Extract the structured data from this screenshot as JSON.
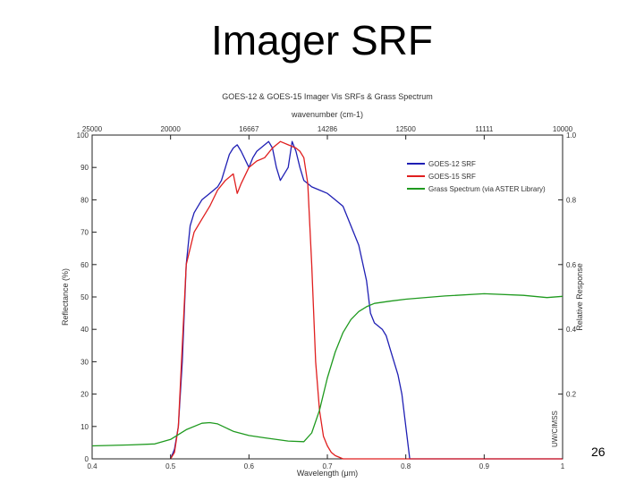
{
  "slide": {
    "title": "Imager SRF",
    "page_number": "26"
  },
  "chart_data": {
    "type": "line",
    "title": "GOES-12 & GOES-15 Imager Vis SRFs & Grass Spectrum",
    "top_axis_label": "wavenumber (cm-1)",
    "top_axis_ticks": [
      "25000",
      "20000",
      "16667",
      "14286",
      "12500",
      "11111",
      "10000"
    ],
    "xlabel": "Wavelength (μm)",
    "ylabel": "Reflectance (%)",
    "y2label": "Relative Response",
    "xlim": [
      0.4,
      1.0
    ],
    "ylim": [
      0,
      100
    ],
    "y2lim": [
      0,
      1
    ],
    "x_ticks": [
      "0.4",
      "0.5",
      "0.6",
      "0.7",
      "0.8",
      "0.9",
      "1"
    ],
    "y_ticks": [
      "0",
      "10",
      "20",
      "30",
      "40",
      "50",
      "60",
      "70",
      "80",
      "90",
      "100"
    ],
    "y2_ticks": [
      "0.2",
      "0.4",
      "0.6",
      "0.8",
      "1.0"
    ],
    "watermark": "UW/CIMSS",
    "legend_position": "top-right",
    "grid": false,
    "series": [
      {
        "name": "GOES-12 SRF",
        "color": "#1f1fb4",
        "axis": "right",
        "x": [
          0.5,
          0.505,
          0.51,
          0.515,
          0.52,
          0.525,
          0.53,
          0.535,
          0.54,
          0.55,
          0.56,
          0.565,
          0.57,
          0.575,
          0.58,
          0.585,
          0.59,
          0.6,
          0.605,
          0.61,
          0.615,
          0.62,
          0.625,
          0.63,
          0.635,
          0.64,
          0.65,
          0.655,
          0.66,
          0.665,
          0.67,
          0.675,
          0.68,
          0.69,
          0.7,
          0.71,
          0.72,
          0.73,
          0.74,
          0.75,
          0.755,
          0.76,
          0.765,
          0.77,
          0.775,
          0.78,
          0.785,
          0.79,
          0.795,
          0.8,
          0.805,
          1.0
        ],
        "y": [
          0.0,
          0.03,
          0.1,
          0.3,
          0.6,
          0.72,
          0.76,
          0.78,
          0.8,
          0.82,
          0.84,
          0.86,
          0.9,
          0.94,
          0.96,
          0.97,
          0.95,
          0.9,
          0.93,
          0.95,
          0.96,
          0.97,
          0.98,
          0.96,
          0.9,
          0.86,
          0.9,
          0.98,
          0.95,
          0.9,
          0.86,
          0.85,
          0.84,
          0.83,
          0.82,
          0.8,
          0.78,
          0.72,
          0.66,
          0.55,
          0.45,
          0.42,
          0.41,
          0.4,
          0.38,
          0.34,
          0.3,
          0.26,
          0.2,
          0.1,
          0.0,
          0.0
        ]
      },
      {
        "name": "GOES-15 SRF",
        "color": "#e01f1f",
        "axis": "right",
        "x": [
          0.5,
          0.505,
          0.51,
          0.515,
          0.52,
          0.53,
          0.54,
          0.55,
          0.56,
          0.57,
          0.58,
          0.585,
          0.59,
          0.6,
          0.61,
          0.62,
          0.63,
          0.64,
          0.65,
          0.66,
          0.665,
          0.67,
          0.675,
          0.68,
          0.685,
          0.69,
          0.695,
          0.7,
          0.705,
          0.71,
          0.72,
          0.73,
          0.74,
          1.0
        ],
        "y": [
          0.0,
          0.02,
          0.1,
          0.35,
          0.6,
          0.7,
          0.74,
          0.78,
          0.83,
          0.86,
          0.88,
          0.82,
          0.85,
          0.9,
          0.92,
          0.93,
          0.96,
          0.98,
          0.97,
          0.96,
          0.95,
          0.93,
          0.85,
          0.6,
          0.3,
          0.15,
          0.07,
          0.04,
          0.02,
          0.01,
          0.0,
          0.0,
          0.0,
          0.0
        ]
      },
      {
        "name": "Grass Spectrum (via ASTER Library)",
        "color": "#1f9a1f",
        "axis": "left",
        "x": [
          0.4,
          0.45,
          0.48,
          0.5,
          0.52,
          0.54,
          0.55,
          0.56,
          0.58,
          0.6,
          0.62,
          0.65,
          0.67,
          0.68,
          0.69,
          0.7,
          0.71,
          0.72,
          0.73,
          0.74,
          0.75,
          0.76,
          0.78,
          0.8,
          0.85,
          0.9,
          0.95,
          0.98,
          1.0
        ],
        "y": [
          4.0,
          4.3,
          4.6,
          6.0,
          9.0,
          11.0,
          11.2,
          10.8,
          8.5,
          7.2,
          6.5,
          5.5,
          5.3,
          8.0,
          15.0,
          25.0,
          33.0,
          39.0,
          43.0,
          45.5,
          47.0,
          48.0,
          48.7,
          49.3,
          50.3,
          51.0,
          50.5,
          49.8,
          50.2
        ]
      }
    ]
  }
}
